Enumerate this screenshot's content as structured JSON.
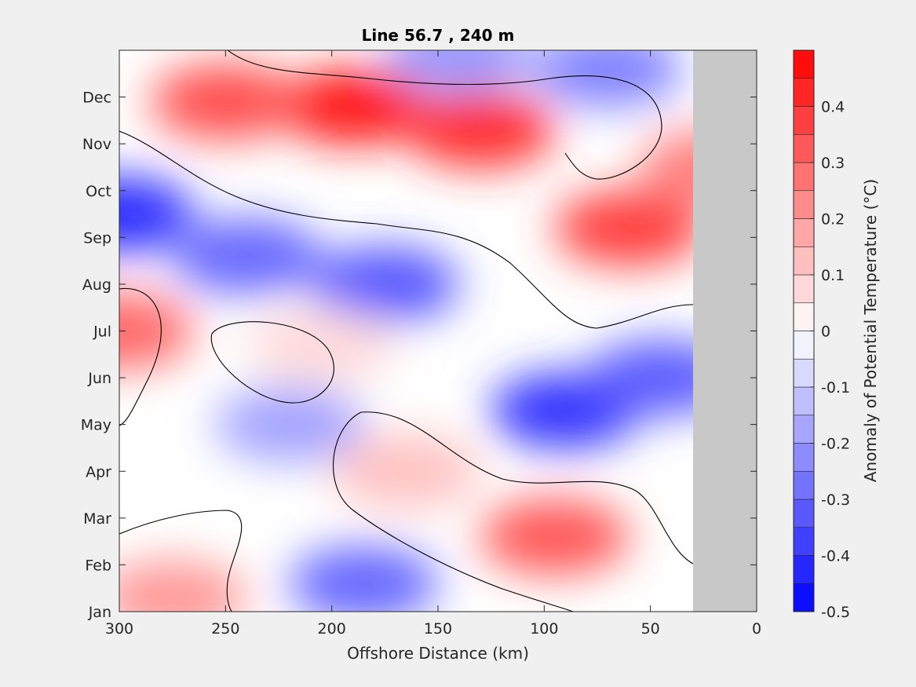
{
  "chart_data": {
    "type": "heatmap",
    "subtype": "filled-contour",
    "title": "Line 56.7 , 240 m",
    "xlabel": "Offshore Distance (km)",
    "ylabel": "",
    "xlim": [
      300,
      0
    ],
    "x_reversed": true,
    "x_ticks": [
      300,
      250,
      200,
      150,
      100,
      50,
      0
    ],
    "y_ticks": [
      "Jan",
      "Feb",
      "Mar",
      "Apr",
      "May",
      "Jun",
      "Jul",
      "Aug",
      "Sep",
      "Oct",
      "Nov",
      "Dec"
    ],
    "no_data_region_x": [
      30,
      0
    ],
    "colorbar": {
      "label": "Anomaly of Potential Temperature (°C)",
      "range": [
        -0.5,
        0.5
      ],
      "levels": [
        -0.5,
        -0.45,
        -0.4,
        -0.35,
        -0.3,
        -0.25,
        -0.2,
        -0.15,
        -0.1,
        -0.05,
        0,
        0.05,
        0.1,
        0.15,
        0.2,
        0.25,
        0.3,
        0.35,
        0.4,
        0.45,
        0.5
      ],
      "ticks": [
        -0.5,
        -0.4,
        -0.3,
        -0.2,
        -0.1,
        0,
        0.1,
        0.2,
        0.3,
        0.4
      ],
      "tick_labels": [
        "-0.5",
        "-0.4",
        "-0.3",
        "-0.2",
        "-0.1",
        "0",
        "0.1",
        "0.2",
        "0.3",
        "0.4"
      ]
    },
    "features": [
      {
        "x": 190,
        "month": 10.8,
        "value": 0.45
      },
      {
        "x": 250,
        "month": 10.9,
        "value": 0.35
      },
      {
        "x": 130,
        "month": 10.3,
        "value": 0.42
      },
      {
        "x": 60,
        "month": 8.2,
        "value": 0.38
      },
      {
        "x": 300,
        "month": 8.5,
        "value": -0.42
      },
      {
        "x": 240,
        "month": 7.6,
        "value": -0.3
      },
      {
        "x": 175,
        "month": 7.0,
        "value": -0.33
      },
      {
        "x": 70,
        "month": 11.6,
        "value": -0.25
      },
      {
        "x": 140,
        "month": 11.9,
        "value": -0.2
      },
      {
        "x": 90,
        "month": 4.3,
        "value": -0.4
      },
      {
        "x": 45,
        "month": 5.0,
        "value": -0.32
      },
      {
        "x": 220,
        "month": 4.0,
        "value": -0.18
      },
      {
        "x": 185,
        "month": 0.6,
        "value": -0.3
      },
      {
        "x": 300,
        "month": 6.0,
        "value": 0.3
      },
      {
        "x": 205,
        "month": 5.7,
        "value": 0.07
      },
      {
        "x": 165,
        "month": 3.0,
        "value": 0.12
      },
      {
        "x": 95,
        "month": 1.6,
        "value": 0.33
      },
      {
        "x": 275,
        "month": 0.3,
        "value": 0.2
      },
      {
        "x": 20,
        "month": 9.5,
        "value": 0.25
      }
    ]
  }
}
